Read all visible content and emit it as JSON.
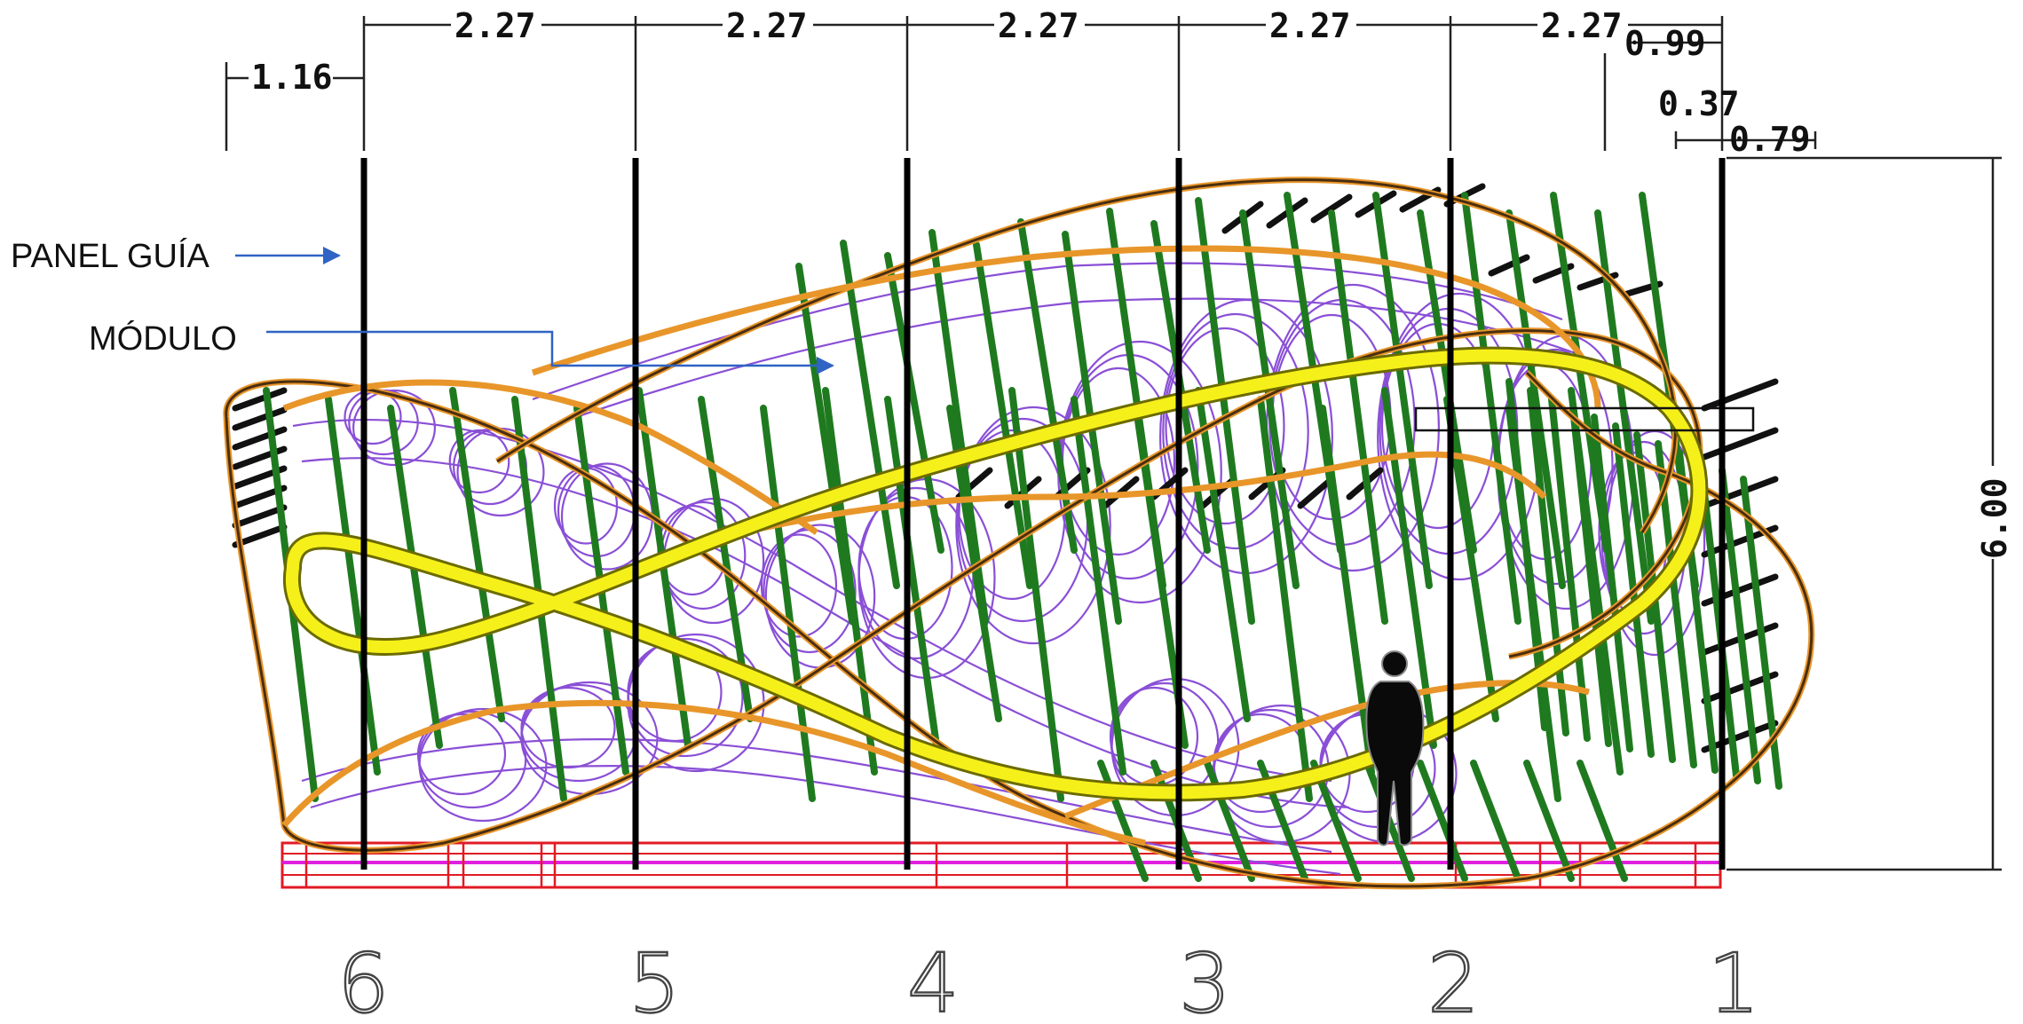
{
  "callouts": {
    "panel_guia": "PANEL GUÍA",
    "modulo": "MÓDULO"
  },
  "dimensions": {
    "left_offset": "1.16",
    "spacing": [
      "2.27",
      "2.27",
      "2.27",
      "2.27",
      "2.27"
    ],
    "right_a": "0.99",
    "right_b": "0.37",
    "right_c": "0.79",
    "height": "6.00"
  },
  "axes": [
    "6",
    "5",
    "4",
    "3",
    "2",
    "1"
  ],
  "colors": {
    "frame_outline": "#e8962a",
    "green_braces": "#1f7a1f",
    "purple_ribs": "#8a4fd6",
    "yellow_walkway": "#f6f01a",
    "black_braces": "#111111",
    "base_red": "#e01b24",
    "base_magenta": "#e020e0",
    "callout_arrow": "#2f63c4"
  },
  "icons": {
    "person": "person-silhouette-icon"
  }
}
